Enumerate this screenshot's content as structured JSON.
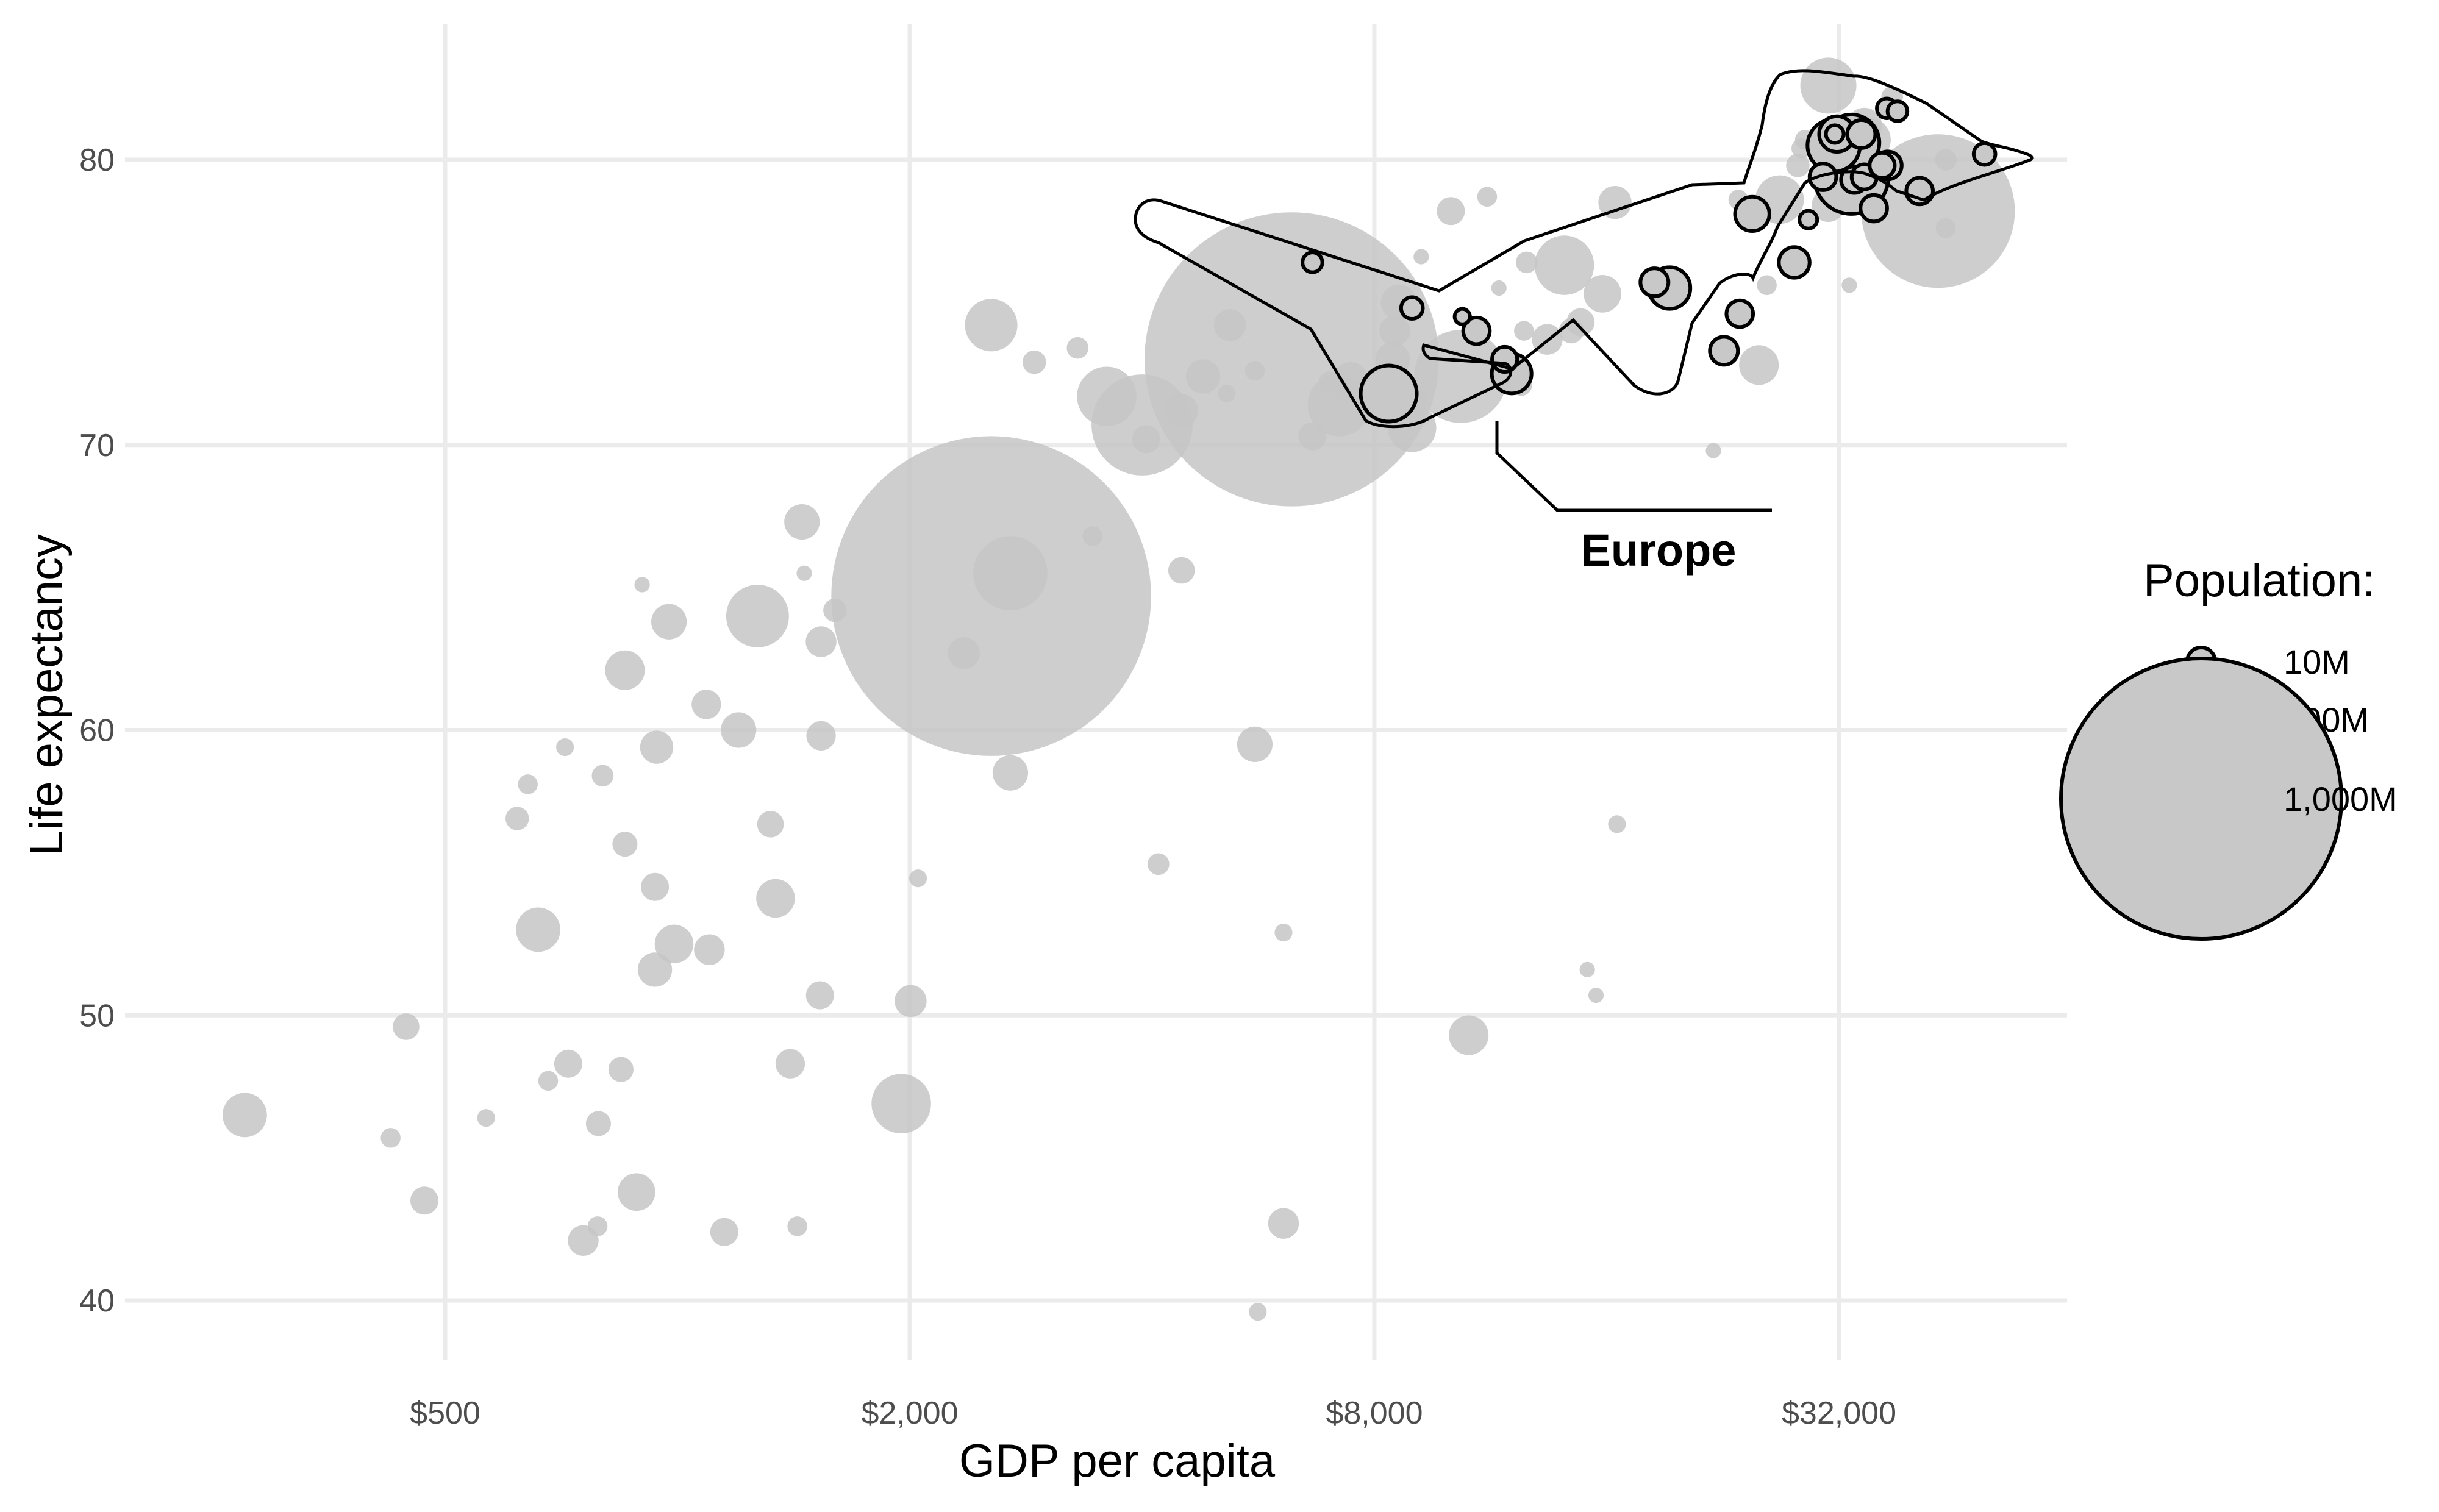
{
  "chart_data": {
    "type": "scatter",
    "xlabel": "GDP per capita",
    "ylabel": "Life expectancy",
    "x_scale": "log2",
    "xlim": [
      180,
      90000
    ],
    "ylim": [
      38.5,
      85
    ],
    "x_ticks": [
      500,
      2000,
      8000,
      32000
    ],
    "x_tick_labels": [
      "$500",
      "$2,000",
      "$8,000",
      "$32,000"
    ],
    "y_ticks": [
      40,
      50,
      60,
      70,
      80
    ],
    "y_tick_labels": [
      "40",
      "50",
      "60",
      "70",
      "80"
    ],
    "grid": true,
    "highlight_group": "Europe",
    "annotation": {
      "label": "Europe"
    },
    "legend": {
      "title": "Population:",
      "position": "right",
      "entries": [
        {
          "label": "10M",
          "pop_millions": 10
        },
        {
          "label": "100M",
          "pop_millions": 100
        },
        {
          "label": "1,000M",
          "pop_millions": 1000
        }
      ]
    },
    "series": [
      {
        "points": [
          [
            275,
            46.5,
            25
          ],
          [
            425,
            45.7,
            5
          ],
          [
            445,
            49.6,
            9
          ],
          [
            470,
            43.5,
            10
          ],
          [
            565,
            46.4,
            4
          ],
          [
            620,
            56.9,
            7
          ],
          [
            640,
            58.1,
            5
          ],
          [
            660,
            53.0,
            25
          ],
          [
            680,
            47.7,
            5
          ],
          [
            715,
            59.4,
            4
          ],
          [
            722,
            48.3,
            10
          ],
          [
            755,
            42.1,
            12
          ],
          [
            788,
            42.6,
            5
          ],
          [
            790,
            46.2,
            8
          ],
          [
            800,
            58.4,
            6
          ],
          [
            845,
            48.1,
            8
          ],
          [
            855,
            56.0,
            8
          ],
          [
            855,
            62.1,
            20
          ],
          [
            885,
            43.8,
            18
          ],
          [
            900,
            65.1,
            3
          ],
          [
            935,
            51.6,
            15
          ],
          [
            935,
            54.5,
            10
          ],
          [
            940,
            59.4,
            14
          ],
          [
            975,
            63.8,
            16
          ],
          [
            990,
            52.5,
            19
          ],
          [
            1100,
            52.3,
            12
          ],
          [
            1090,
            60.9,
            11
          ],
          [
            1150,
            42.4,
            10
          ],
          [
            1200,
            60.0,
            16
          ],
          [
            1270,
            64.0,
            50
          ],
          [
            1320,
            56.7,
            9
          ],
          [
            1340,
            54.1,
            19
          ],
          [
            1400,
            48.3,
            11
          ],
          [
            1430,
            42.6,
            5
          ],
          [
            1450,
            67.3,
            16
          ],
          [
            1460,
            65.5,
            3
          ],
          [
            1530,
            50.7,
            10
          ],
          [
            1535,
            63.1,
            12
          ],
          [
            1535,
            59.8,
            11
          ],
          [
            1600,
            64.2,
            7
          ],
          [
            1950,
            46.9,
            45
          ],
          [
            2005,
            50.5,
            13
          ],
          [
            2050,
            54.8,
            4
          ],
          [
            2350,
            62.7,
            13
          ],
          [
            2550,
            74.2,
            35
          ],
          [
            2550,
            64.7,
            1300
          ],
          [
            2700,
            65.5,
            70
          ],
          [
            2700,
            58.5,
            16
          ],
          [
            2900,
            72.9,
            7
          ],
          [
            3300,
            73.4,
            6
          ],
          [
            3450,
            66.8,
            5
          ],
          [
            3600,
            71.7,
            45
          ],
          [
            4000,
            70.7,
            130
          ],
          [
            4050,
            70.2,
            10
          ],
          [
            4200,
            55.3,
            6
          ],
          [
            4500,
            65.6,
            9
          ],
          [
            4500,
            71.2,
            14
          ],
          [
            4800,
            72.4,
            15
          ],
          [
            5150,
            71.8,
            4
          ],
          [
            5200,
            74.2,
            13
          ],
          [
            5600,
            59.5,
            16
          ],
          [
            5600,
            72.6,
            5
          ],
          [
            5650,
            39.6,
            4
          ],
          [
            6100,
            52.9,
            4
          ],
          [
            6100,
            42.7,
            12
          ],
          [
            6250,
            73.0,
            1100
          ],
          [
            6650,
            70.3,
            10
          ],
          [
            7000,
            72.2,
            6
          ],
          [
            7200,
            71.4,
            50
          ],
          [
            7350,
            71.9,
            7
          ],
          [
            7450,
            72.3,
            15
          ],
          [
            8450,
            73.0,
            15
          ],
          [
            8500,
            74.0,
            12
          ],
          [
            8600,
            75.0,
            16
          ],
          [
            8900,
            71.5,
            14
          ],
          [
            8950,
            70.6,
            30
          ],
          [
            9200,
            76.6,
            3
          ],
          [
            10050,
            78.2,
            10
          ],
          [
            10350,
            72.4,
            110
          ],
          [
            10600,
            49.3,
            20
          ],
          [
            11200,
            78.7,
            5
          ],
          [
            11600,
            75.5,
            3
          ],
          [
            12400,
            72.1,
            6
          ],
          [
            12600,
            76.4,
            6
          ],
          [
            12500,
            74.0,
            5
          ],
          [
            13400,
            73.7,
            12
          ],
          [
            14100,
            76.3,
            45
          ],
          [
            14400,
            74.0,
            8
          ],
          [
            14800,
            74.3,
            10
          ],
          [
            15100,
            51.6,
            3
          ],
          [
            15500,
            50.7,
            3
          ],
          [
            15800,
            75.3,
            18
          ],
          [
            16500,
            56.7,
            4
          ],
          [
            16400,
            78.5,
            14
          ],
          [
            22000,
            69.8,
            3
          ],
          [
            23700,
            78.6,
            5
          ],
          [
            25200,
            72.8,
            20
          ],
          [
            25800,
            75.6,
            5
          ],
          [
            26800,
            78.6,
            30
          ],
          [
            28300,
            79.8,
            7
          ],
          [
            28600,
            80.4,
            5
          ],
          [
            28900,
            80.7,
            5
          ],
          [
            31000,
            82.6,
            40
          ],
          [
            31000,
            78.4,
            14
          ],
          [
            33000,
            75.6,
            3
          ],
          [
            34500,
            81.2,
            16
          ],
          [
            35000,
            80.7,
            24
          ],
          [
            37500,
            82.2,
            6
          ],
          [
            43000,
            78.2,
            300
          ],
          [
            44000,
            77.6,
            5
          ],
          [
            44000,
            80.0,
            6
          ]
        ]
      },
      {
        "name": "Europe",
        "points": [
          [
            6650,
            76.4,
            5
          ],
          [
            8950,
            74.8,
            6
          ],
          [
            10400,
            74.5,
            3
          ],
          [
            10850,
            74.0,
            9
          ],
          [
            8350,
            71.8,
            40
          ],
          [
            11800,
            73.0,
            8
          ],
          [
            12050,
            72.5,
            20
          ],
          [
            18450,
            75.7,
            10
          ],
          [
            19300,
            75.5,
            22
          ],
          [
            22700,
            73.3,
            10
          ],
          [
            23800,
            74.6,
            9
          ],
          [
            24700,
            78.1,
            15
          ],
          [
            28000,
            76.4,
            12
          ],
          [
            29200,
            77.9,
            4
          ],
          [
            30500,
            79.4,
            9
          ],
          [
            31600,
            80.9,
            4
          ],
          [
            31800,
            80.9,
            16
          ],
          [
            31500,
            80.5,
            35
          ],
          [
            33200,
            80.6,
            40
          ],
          [
            33200,
            79.4,
            70
          ],
          [
            33500,
            79.3,
            9
          ],
          [
            34500,
            79.4,
            8
          ],
          [
            34200,
            80.9,
            10
          ],
          [
            35500,
            78.3,
            9
          ],
          [
            36400,
            79.8,
            8
          ],
          [
            37000,
            79.8,
            10
          ],
          [
            36900,
            81.8,
            5
          ],
          [
            38100,
            81.7,
            5
          ],
          [
            40700,
            78.9,
            9
          ],
          [
            49400,
            80.2,
            6
          ]
        ]
      }
    ]
  }
}
